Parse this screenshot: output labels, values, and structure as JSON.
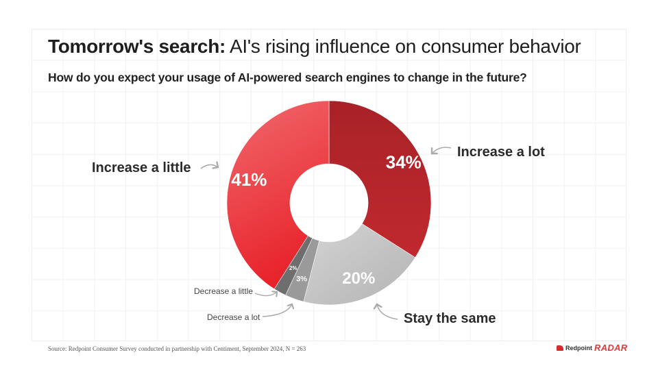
{
  "title_bold": "Tomorrow's search:",
  "title_rest": "AI's rising influence on consumer behavior",
  "subtitle": "How do you expect your usage of AI-powered search engines to change in the future?",
  "chart_data": {
    "type": "pie",
    "donut": true,
    "title": "How do you expect your usage of AI-powered search engines to change in the future?",
    "slices": [
      {
        "label": "Increase a lot",
        "value": 34,
        "display": "34%",
        "color": "#b8262c"
      },
      {
        "label": "Stay the same",
        "value": 20,
        "display": "20%",
        "color": "#bdbdbd"
      },
      {
        "label": "Decrease a lot",
        "value": 3,
        "display": "3%",
        "color": "#9a9a9a"
      },
      {
        "label": "Decrease a little",
        "value": 2,
        "display": "2%",
        "color": "#6e6e6e"
      },
      {
        "label": "Increase a little",
        "value": 41,
        "display": "41%",
        "color": "#e8393e"
      }
    ]
  },
  "source": "Source: Redpoint Consumer Survey conducted in partnership with Centiment, September 2024, N = 263",
  "brand": {
    "name": "Redpoint",
    "product": "RADAR",
    "accent": "#e03a3a"
  }
}
